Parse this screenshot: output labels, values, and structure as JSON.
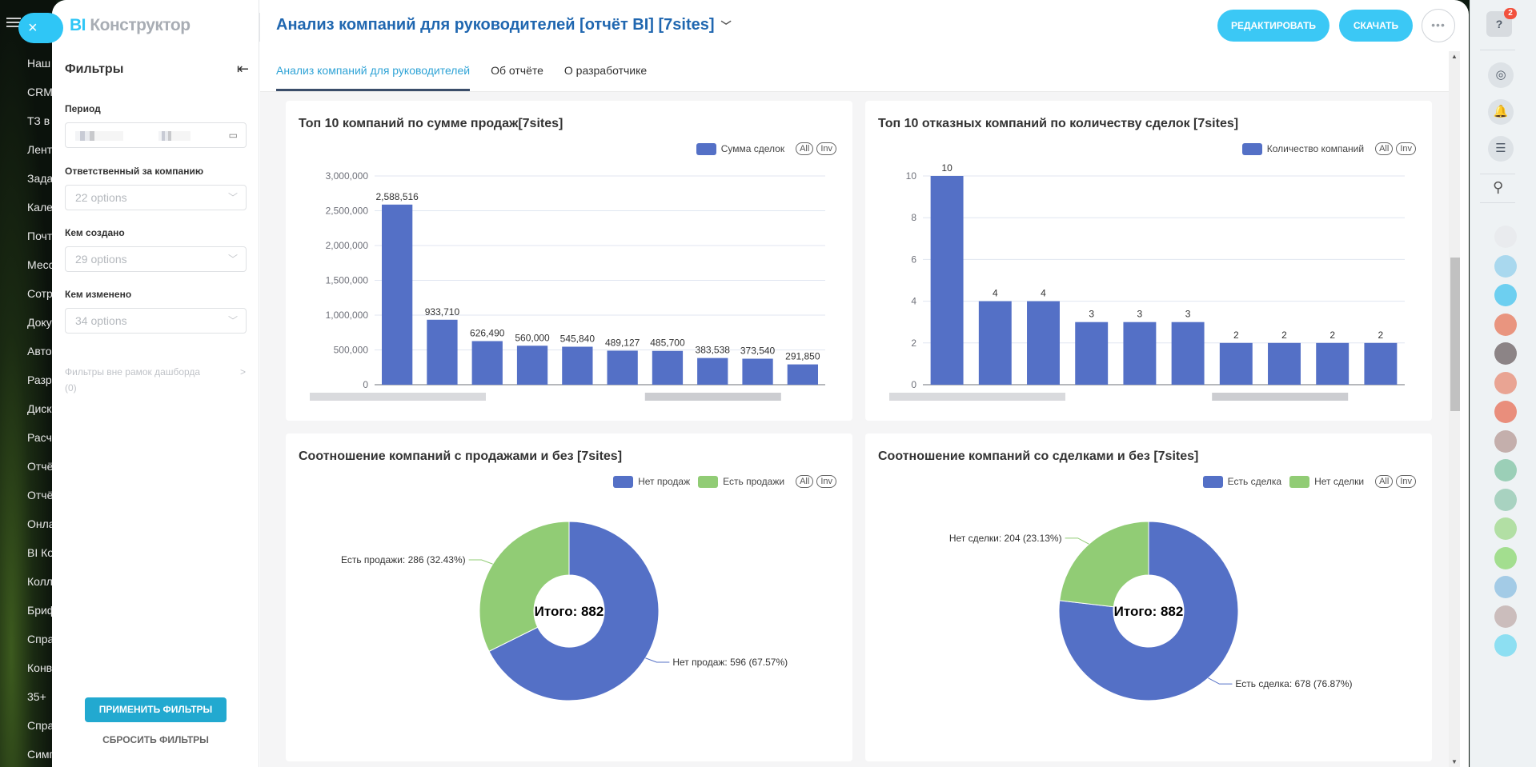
{
  "portal_nav": {
    "items": [
      "Наш",
      "CRM",
      "ТЗ в",
      "Лент",
      "Зада",
      "Кале",
      "Почт",
      "Месс",
      "Сотр",
      "Доку",
      "Авто",
      "Разр",
      "Диск",
      "Расч",
      "Отчё",
      "Отчё",
      "Онла",
      "BI Ко",
      "Колл",
      "Бриф",
      "Спра",
      "Конв",
      "35+",
      "Спра",
      "Симп"
    ]
  },
  "close_label": "×",
  "logo": {
    "bi": "BI",
    "text": "Конструктор"
  },
  "filters": {
    "title": "Фильтры",
    "collapse_icon": "⇤",
    "period_label": "Период",
    "period_value": "",
    "calendar_icon": "▭",
    "responsible_label": "Ответственный за компанию",
    "responsible_placeholder": "22 options",
    "created_by_label": "Кем создано",
    "created_by_placeholder": "29 options",
    "modified_by_label": "Кем изменено",
    "modified_by_placeholder": "34 options",
    "outside_label": "Фильтры вне рамок дашборда",
    "outside_count": "(0)",
    "apply": "ПРИМЕНИТЬ ФИЛЬТРЫ",
    "reset": "СБРОСИТЬ ФИЛЬТРЫ"
  },
  "header": {
    "title": "Анализ компаний для руководителей [отчёт BI] [7sites]",
    "edit": "РЕДАКТИРОВАТЬ",
    "download": "СКАЧАТЬ",
    "more": "•••"
  },
  "tabs": [
    {
      "label": "Анализ компаний для руководителей",
      "active": true
    },
    {
      "label": "Об отчёте",
      "active": false
    },
    {
      "label": "О разработчике",
      "active": false
    }
  ],
  "legend_controls": {
    "all": "All",
    "inv": "Inv"
  },
  "colors": {
    "blue": "#5470c6",
    "green": "#91cc75",
    "accent": "#2fc6f6",
    "badge": "#f2513d"
  },
  "rail": {
    "help": "?",
    "badge_count": "2"
  },
  "chart_data": [
    {
      "type": "bar",
      "title": "Топ 10 компаний по сумме продаж[7sites]",
      "legend": [
        "Сумма сделок"
      ],
      "categories": [
        "",
        "",
        "",
        "",
        "",
        "",
        "",
        "",
        "",
        ""
      ],
      "values": [
        2588516,
        933710,
        626490,
        560000,
        545840,
        489127,
        485700,
        383538,
        373540,
        291850
      ],
      "value_labels": [
        "2,588,516",
        "933,710",
        "626,490",
        "560,000",
        "545,840",
        "489,127",
        "485,700",
        "383,538",
        "373,540",
        "291,850"
      ],
      "yticks": [
        "0",
        "500,000",
        "1,000,000",
        "1,500,000",
        "2,000,000",
        "2,500,000",
        "3,000,000"
      ],
      "ylim": [
        0,
        3000000
      ],
      "xlabel": "",
      "ylabel": "",
      "grid": true,
      "legend_position": "top-right"
    },
    {
      "type": "bar",
      "title": "Топ 10 отказных компаний по количеству сделок [7sites]",
      "legend": [
        "Количество компаний"
      ],
      "categories": [
        "",
        "",
        "",
        "",
        "",
        "",
        "",
        "",
        "",
        ""
      ],
      "values": [
        10,
        4,
        4,
        3,
        3,
        3,
        2,
        2,
        2,
        2
      ],
      "value_labels": [
        "10",
        "4",
        "4",
        "3",
        "3",
        "3",
        "2",
        "2",
        "2",
        "2"
      ],
      "yticks": [
        "0",
        "2",
        "4",
        "6",
        "8",
        "10"
      ],
      "ylim": [
        0,
        10
      ],
      "xlabel": "",
      "ylabel": "",
      "grid": true,
      "legend_position": "top-right"
    },
    {
      "type": "pie",
      "title": "Соотношение компаний с продажами и без [7sites]",
      "legend": [
        "Нет продаж",
        "Есть продажи"
      ],
      "slices": [
        {
          "label": "Нет продаж",
          "value": 596,
          "percent": 67.57,
          "text": "Нет продаж: 596 (67.57%)"
        },
        {
          "label": "Есть продажи",
          "value": 286,
          "percent": 32.43,
          "text": "Есть продажи: 286 (32.43%)"
        }
      ],
      "center_text": "Итого: 882",
      "legend_position": "top-right"
    },
    {
      "type": "pie",
      "title": "Соотношение компаний со сделками и без [7sites]",
      "legend": [
        "Есть сделка",
        "Нет сделки"
      ],
      "slices": [
        {
          "label": "Есть сделка",
          "value": 678,
          "percent": 76.87,
          "text": "Есть сделка: 678 (76.87%)"
        },
        {
          "label": "Нет сделки",
          "value": 204,
          "percent": 23.13,
          "text": "Нет сделки: 204 (23.13%)"
        }
      ],
      "center_text": "Итого: 882",
      "legend_position": "top-right"
    }
  ]
}
